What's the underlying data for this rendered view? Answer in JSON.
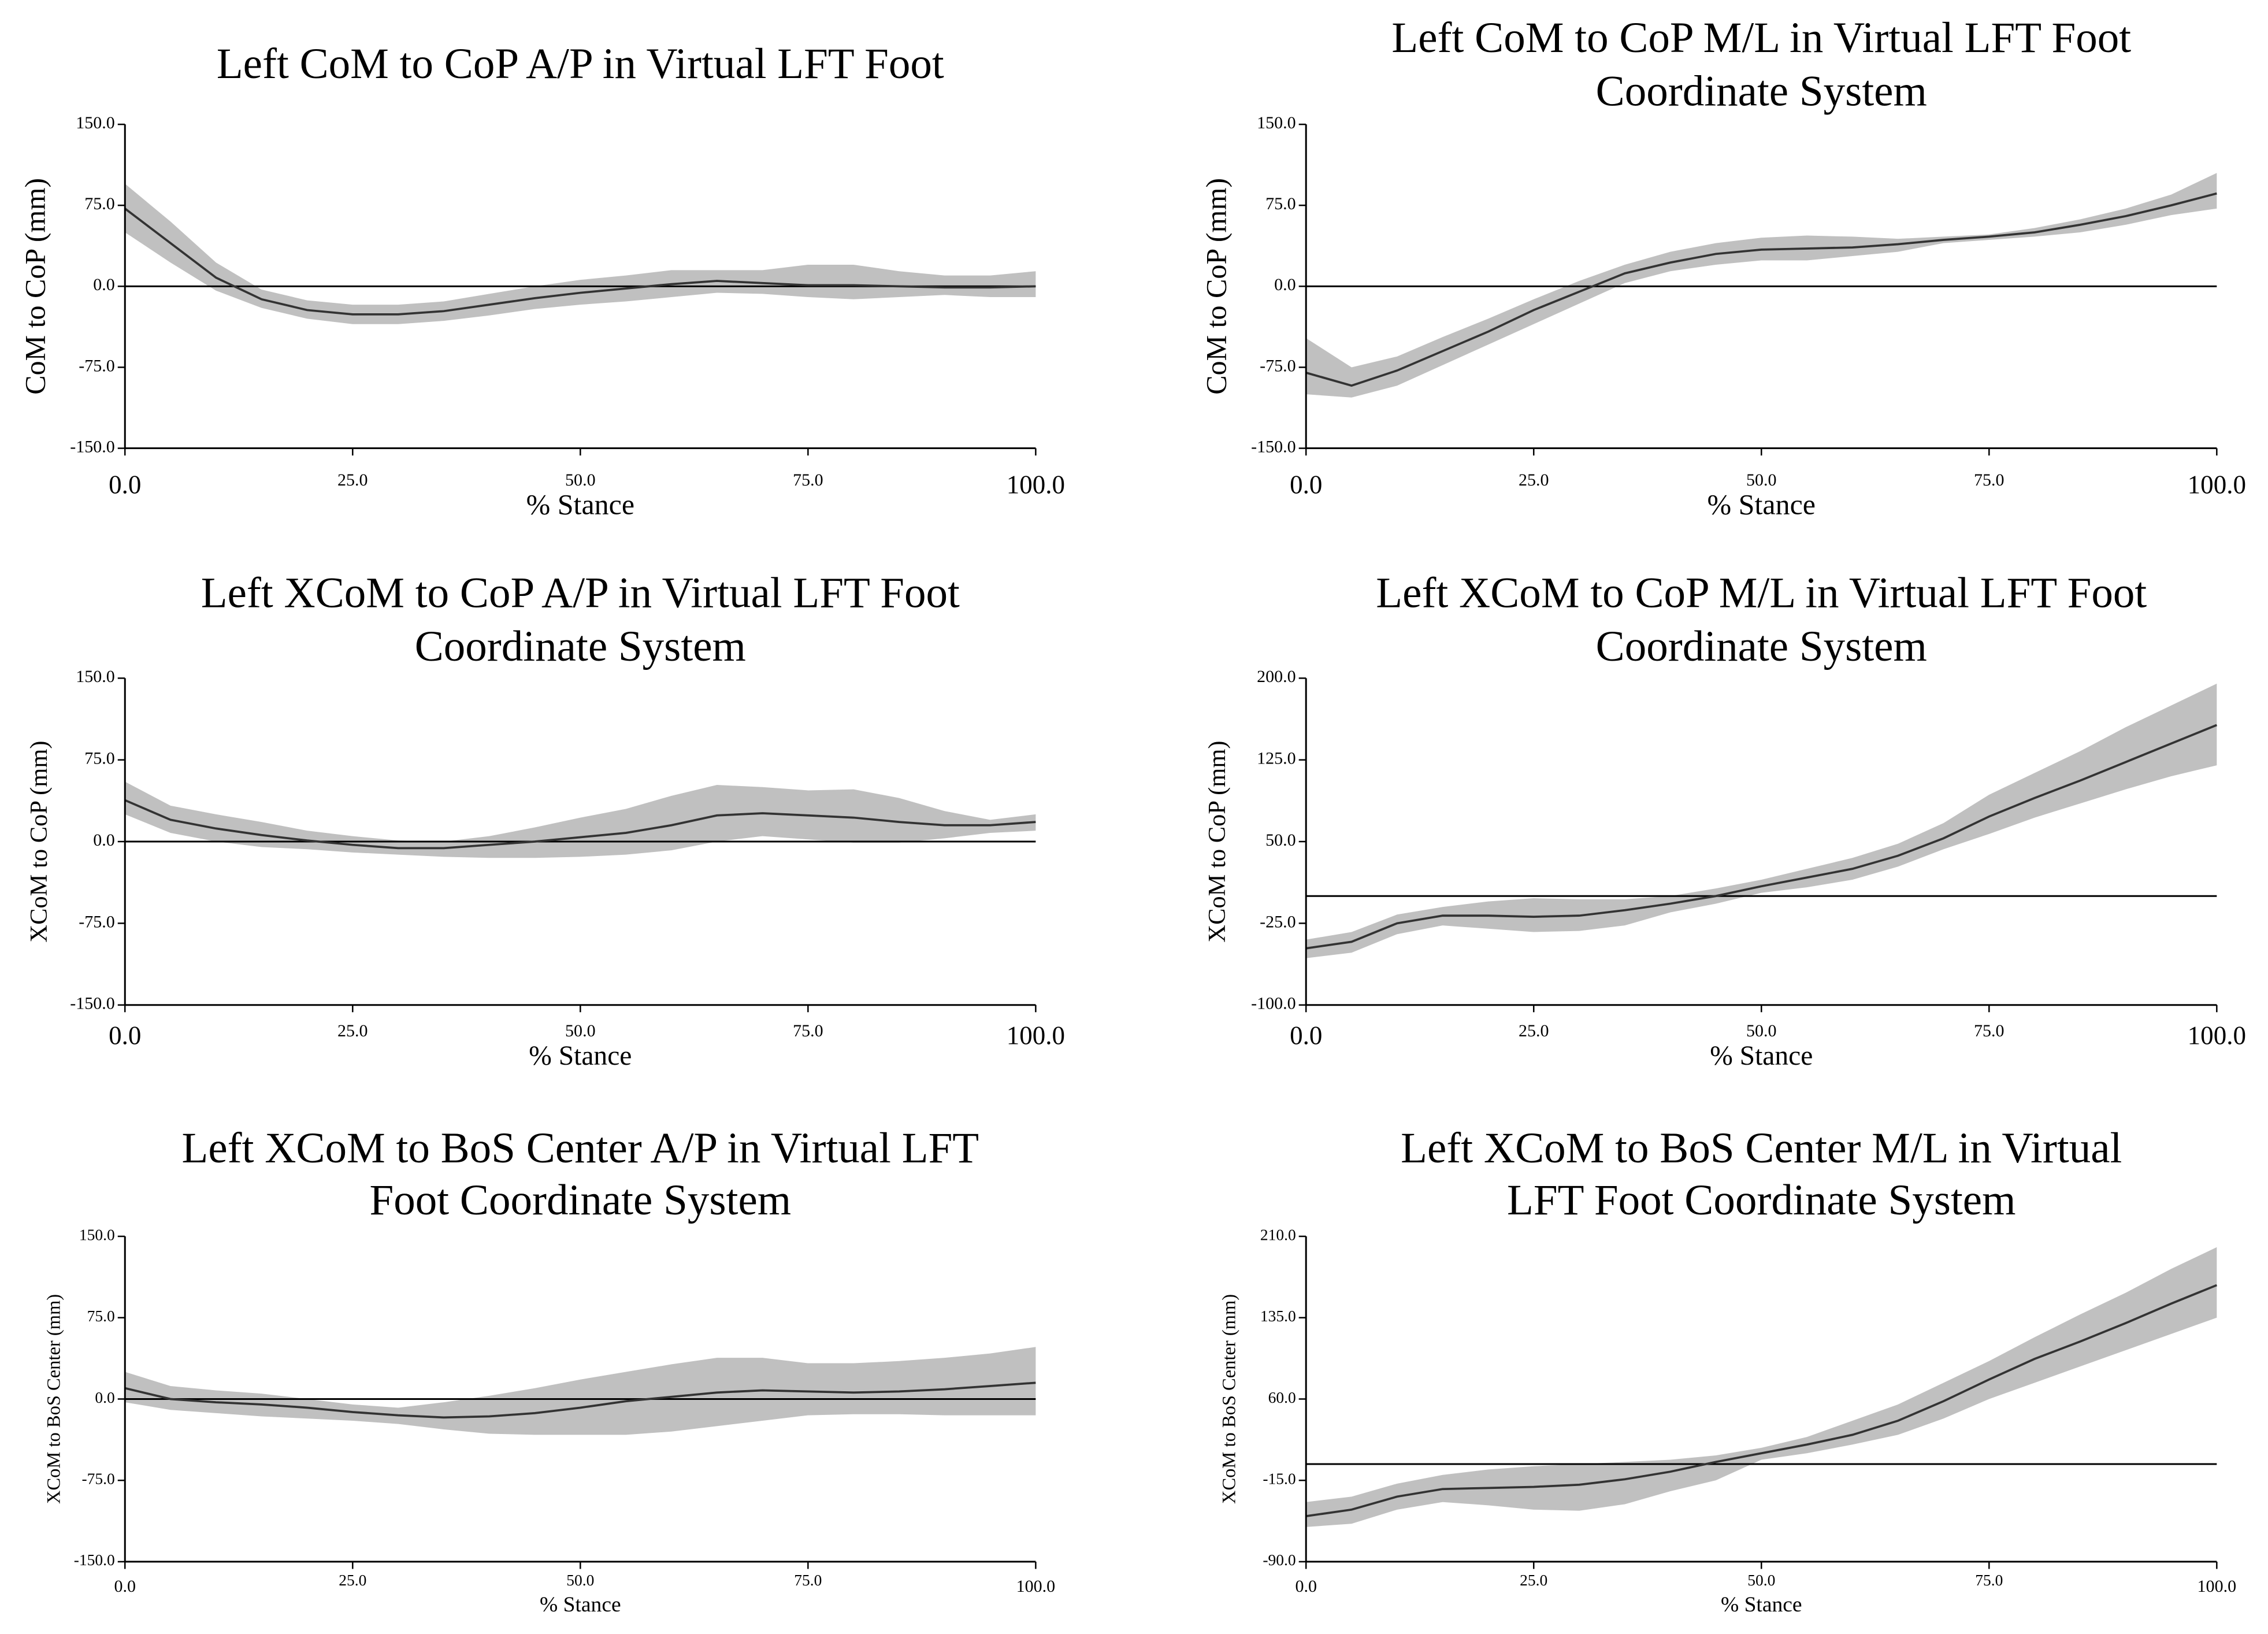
{
  "chart_data": [
    {
      "type": "line",
      "title": [
        "Left CoM to CoP A/P in Virtual LFT Foot"
      ],
      "xlabel": "% Stance",
      "ylabel": "CoM to CoP (mm)",
      "x": [
        0,
        5,
        10,
        15,
        20,
        25,
        30,
        35,
        40,
        45,
        50,
        55,
        60,
        65,
        70,
        75,
        80,
        85,
        90,
        95,
        100
      ],
      "values": [
        72,
        40,
        8,
        -12,
        -22,
        -26,
        -26,
        -23,
        -17,
        -11,
        -6,
        -2,
        2,
        5,
        3,
        1,
        1,
        0,
        -1,
        -1,
        0
      ],
      "band_upper": [
        95,
        60,
        22,
        -3,
        -13,
        -17,
        -17,
        -14,
        -7,
        0,
        6,
        10,
        15,
        15,
        15,
        20,
        20,
        14,
        10,
        10,
        14
      ],
      "band_lower": [
        50,
        22,
        -4,
        -20,
        -30,
        -35,
        -35,
        -32,
        -27,
        -21,
        -17,
        -14,
        -10,
        -6,
        -7,
        -10,
        -12,
        -10,
        -8,
        -10,
        -10
      ],
      "color": "#333333",
      "band_color": "#c0c0c0",
      "reference_line": 0,
      "xlim": [
        0,
        100
      ],
      "xticks": [
        {
          "value": 0,
          "label": "0.0"
        },
        {
          "value": 25,
          "label": "25.0"
        },
        {
          "value": 50,
          "label": "50.0"
        },
        {
          "value": 75,
          "label": "75.0"
        },
        {
          "value": 100,
          "label": "100.0"
        }
      ],
      "ylim": [
        -150,
        150
      ],
      "yticks": [
        {
          "value": -150,
          "label": "-150.0"
        },
        {
          "value": -75,
          "label": "-75.0"
        },
        {
          "value": 0,
          "label": "0.0"
        },
        {
          "value": 75,
          "label": "75.0"
        },
        {
          "value": 150,
          "label": "150.0"
        }
      ]
    },
    {
      "type": "line",
      "title": [
        "Left CoM to CoP M/L in Virtual LFT Foot",
        "Coordinate System"
      ],
      "xlabel": "% Stance",
      "ylabel": "CoM to CoP (mm)",
      "x": [
        0,
        5,
        10,
        15,
        20,
        25,
        30,
        35,
        40,
        45,
        50,
        55,
        60,
        65,
        70,
        75,
        80,
        85,
        90,
        95,
        100
      ],
      "values": [
        -80,
        -92,
        -78,
        -60,
        -42,
        -22,
        -5,
        12,
        22,
        30,
        34,
        35,
        36,
        39,
        43,
        46,
        50,
        57,
        65,
        75,
        86
      ],
      "band_upper": [
        -48,
        -75,
        -65,
        -47,
        -30,
        -12,
        5,
        20,
        32,
        40,
        45,
        47,
        46,
        44,
        46,
        48,
        54,
        62,
        72,
        85,
        105
      ],
      "band_lower": [
        -100,
        -103,
        -92,
        -73,
        -54,
        -35,
        -16,
        3,
        14,
        20,
        24,
        24,
        28,
        32,
        40,
        43,
        46,
        50,
        57,
        66,
        72
      ],
      "color": "#333333",
      "band_color": "#c0c0c0",
      "reference_line": 0,
      "xlim": [
        0,
        100
      ],
      "xticks": [
        {
          "value": 0,
          "label": "0.0"
        },
        {
          "value": 25,
          "label": "25.0"
        },
        {
          "value": 50,
          "label": "50.0"
        },
        {
          "value": 75,
          "label": "75.0"
        },
        {
          "value": 100,
          "label": "100.0"
        }
      ],
      "ylim": [
        -150,
        150
      ],
      "yticks": [
        {
          "value": -150,
          "label": "-150.0"
        },
        {
          "value": -75,
          "label": "-75.0"
        },
        {
          "value": 0,
          "label": "0.0"
        },
        {
          "value": 75,
          "label": "75.0"
        },
        {
          "value": 150,
          "label": "150.0"
        }
      ]
    },
    {
      "type": "line",
      "title": [
        "Left XCoM to CoP A/P in Virtual LFT Foot",
        "Coordinate System"
      ],
      "xlabel": "% Stance",
      "ylabel": "XCoM to CoP (mm)",
      "x": [
        0,
        5,
        10,
        15,
        20,
        25,
        30,
        35,
        40,
        45,
        50,
        55,
        60,
        65,
        70,
        75,
        80,
        85,
        90,
        95,
        100
      ],
      "values": [
        38,
        20,
        12,
        6,
        1,
        -3,
        -6,
        -6,
        -3,
        0,
        4,
        8,
        15,
        24,
        26,
        24,
        22,
        18,
        15,
        15,
        18
      ],
      "band_upper": [
        55,
        33,
        25,
        18,
        10,
        5,
        1,
        0,
        5,
        13,
        22,
        30,
        42,
        52,
        50,
        47,
        48,
        40,
        28,
        20,
        25
      ],
      "band_lower": [
        25,
        8,
        0,
        -5,
        -7,
        -10,
        -12,
        -14,
        -15,
        -15,
        -14,
        -12,
        -8,
        0,
        5,
        2,
        -1,
        -1,
        3,
        8,
        10
      ],
      "color": "#333333",
      "band_color": "#c0c0c0",
      "reference_line": 0,
      "xlim": [
        0,
        100
      ],
      "xticks": [
        {
          "value": 0,
          "label": "0.0"
        },
        {
          "value": 25,
          "label": "25.0"
        },
        {
          "value": 50,
          "label": "50.0"
        },
        {
          "value": 75,
          "label": "75.0"
        },
        {
          "value": 100,
          "label": "100.0"
        }
      ],
      "ylim": [
        -150,
        150
      ],
      "yticks": [
        {
          "value": -150,
          "label": "-150.0"
        },
        {
          "value": -75,
          "label": "-75.0"
        },
        {
          "value": 0,
          "label": "0.0"
        },
        {
          "value": 75,
          "label": "75.0"
        },
        {
          "value": 150,
          "label": "150.0"
        }
      ]
    },
    {
      "type": "line",
      "title": [
        "Left XCoM to CoP M/L in Virtual LFT Foot",
        "Coordinate System"
      ],
      "xlabel": "% Stance",
      "ylabel": "XCoM to CoP (mm)",
      "x": [
        0,
        5,
        10,
        15,
        20,
        25,
        30,
        35,
        40,
        45,
        50,
        55,
        60,
        65,
        70,
        75,
        80,
        85,
        90,
        95,
        100
      ],
      "values": [
        -48,
        -42,
        -25,
        -18,
        -18,
        -19,
        -18,
        -13,
        -7,
        0,
        9,
        17,
        25,
        37,
        53,
        73,
        90,
        106,
        123,
        140,
        157
      ],
      "band_upper": [
        -40,
        -33,
        -17,
        -10,
        -5,
        -2,
        -3,
        -3,
        0,
        7,
        15,
        25,
        35,
        48,
        67,
        93,
        113,
        133,
        155,
        175,
        195
      ],
      "band_lower": [
        -57,
        -52,
        -35,
        -27,
        -30,
        -33,
        -32,
        -27,
        -15,
        -7,
        3,
        8,
        15,
        27,
        43,
        57,
        72,
        85,
        98,
        110,
        120
      ],
      "color": "#333333",
      "band_color": "#c0c0c0",
      "reference_line": 0,
      "xlim": [
        0,
        100
      ],
      "xticks": [
        {
          "value": 0,
          "label": "0.0"
        },
        {
          "value": 25,
          "label": "25.0"
        },
        {
          "value": 50,
          "label": "50.0"
        },
        {
          "value": 75,
          "label": "75.0"
        },
        {
          "value": 100,
          "label": "100.0"
        }
      ],
      "ylim": [
        -100,
        200
      ],
      "yticks": [
        {
          "value": -100,
          "label": "-100.0"
        },
        {
          "value": -25,
          "label": "-25.0"
        },
        {
          "value": 50,
          "label": "50.0"
        },
        {
          "value": 125,
          "label": "125.0"
        },
        {
          "value": 200,
          "label": "200.0"
        }
      ]
    },
    {
      "type": "line",
      "title": [
        "Left XCoM to BoS Center A/P in Virtual LFT",
        "Foot Coordinate System"
      ],
      "xlabel": "% Stance",
      "ylabel": "XCoM to BoS Center (mm)",
      "x": [
        0,
        5,
        10,
        15,
        20,
        25,
        30,
        35,
        40,
        45,
        50,
        55,
        60,
        65,
        70,
        75,
        80,
        85,
        90,
        95,
        100
      ],
      "values": [
        10,
        0,
        -3,
        -5,
        -8,
        -12,
        -15,
        -17,
        -16,
        -13,
        -8,
        -2,
        2,
        6,
        8,
        7,
        6,
        7,
        9,
        12,
        15
      ],
      "band_upper": [
        25,
        12,
        8,
        5,
        0,
        -5,
        -8,
        -3,
        3,
        10,
        18,
        25,
        32,
        38,
        38,
        33,
        33,
        35,
        38,
        42,
        48
      ],
      "band_lower": [
        -3,
        -10,
        -13,
        -16,
        -18,
        -20,
        -23,
        -28,
        -32,
        -33,
        -33,
        -33,
        -30,
        -25,
        -20,
        -15,
        -14,
        -14,
        -15,
        -15,
        -15
      ],
      "color": "#333333",
      "band_color": "#c0c0c0",
      "reference_line": 0,
      "xlim": [
        0,
        100
      ],
      "xticks": [
        {
          "value": 0,
          "label": "0.0"
        },
        {
          "value": 25,
          "label": "25.0"
        },
        {
          "value": 50,
          "label": "50.0"
        },
        {
          "value": 75,
          "label": "75.0"
        },
        {
          "value": 100,
          "label": "100.0"
        }
      ],
      "ylim": [
        -150,
        150
      ],
      "yticks": [
        {
          "value": -150,
          "label": "-150.0"
        },
        {
          "value": -75,
          "label": "-75.0"
        },
        {
          "value": 0,
          "label": "0.0"
        },
        {
          "value": 75,
          "label": "75.0"
        },
        {
          "value": 150,
          "label": "150.0"
        }
      ]
    },
    {
      "type": "line",
      "title": [
        "Left XCoM to BoS Center M/L in Virtual",
        "LFT Foot Coordinate System"
      ],
      "xlabel": "% Stance",
      "ylabel": "XCoM to BoS Center (mm)",
      "x": [
        0,
        5,
        10,
        15,
        20,
        25,
        30,
        35,
        40,
        45,
        50,
        55,
        60,
        65,
        70,
        75,
        80,
        85,
        90,
        95,
        100
      ],
      "values": [
        -48,
        -42,
        -30,
        -23,
        -22,
        -21,
        -19,
        -14,
        -7,
        2,
        10,
        18,
        27,
        40,
        58,
        78,
        97,
        113,
        130,
        148,
        165
      ],
      "band_upper": [
        -35,
        -30,
        -18,
        -10,
        -5,
        -2,
        0,
        2,
        4,
        8,
        15,
        25,
        40,
        55,
        75,
        95,
        117,
        138,
        158,
        180,
        200
      ],
      "band_lower": [
        -58,
        -55,
        -42,
        -35,
        -38,
        -42,
        -43,
        -37,
        -25,
        -15,
        4,
        10,
        18,
        27,
        42,
        60,
        75,
        90,
        105,
        120,
        135
      ],
      "color": "#333333",
      "band_color": "#c0c0c0",
      "reference_line": 0,
      "xlim": [
        0,
        100
      ],
      "xticks": [
        {
          "value": 0,
          "label": "0.0"
        },
        {
          "value": 25,
          "label": "25.0"
        },
        {
          "value": 50,
          "label": "50.0"
        },
        {
          "value": 75,
          "label": "75.0"
        },
        {
          "value": 100,
          "label": "100.0"
        }
      ],
      "ylim": [
        -90,
        210
      ],
      "yticks": [
        {
          "value": -90,
          "label": "-90.0"
        },
        {
          "value": -15,
          "label": "-15.0"
        },
        {
          "value": 60,
          "label": "60.0"
        },
        {
          "value": 135,
          "label": "135.0"
        },
        {
          "value": 210,
          "label": "210.0"
        }
      ]
    }
  ]
}
